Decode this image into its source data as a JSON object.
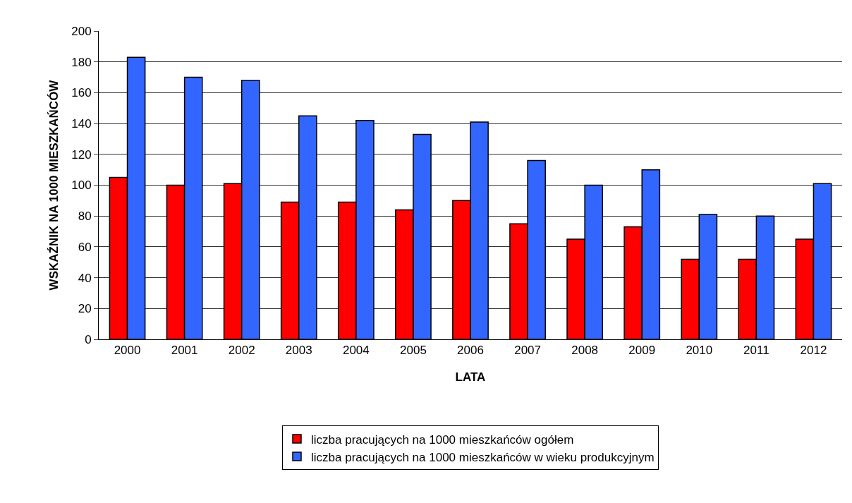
{
  "chart_data": {
    "type": "bar",
    "xlabel": "LATA",
    "ylabel": "WSKAŹNIK NA 1000 MIESZKAŃCÓW",
    "categories": [
      "2000",
      "2001",
      "2002",
      "2003",
      "2004",
      "2005",
      "2006",
      "2007",
      "2008",
      "2009",
      "2010",
      "2011",
      "2012"
    ],
    "series": [
      {
        "name": "liczba pracujących na 1000 mieszkańców ogółem",
        "color": "#ff0000",
        "values": [
          105,
          100,
          101,
          89,
          89,
          84,
          90,
          75,
          65,
          73,
          52,
          52,
          65
        ]
      },
      {
        "name": "liczba pracujących na 1000 mieszkańców w wieku produkcyjnym",
        "color": "#3366ff",
        "values": [
          183,
          170,
          168,
          145,
          142,
          133,
          141,
          116,
          100,
          110,
          81,
          80,
          101
        ]
      }
    ],
    "ylim": [
      0,
      200
    ],
    "yticks": [
      0,
      20,
      40,
      60,
      80,
      100,
      120,
      140,
      160,
      180,
      200
    ],
    "grid": "y",
    "legend": "bottom"
  }
}
